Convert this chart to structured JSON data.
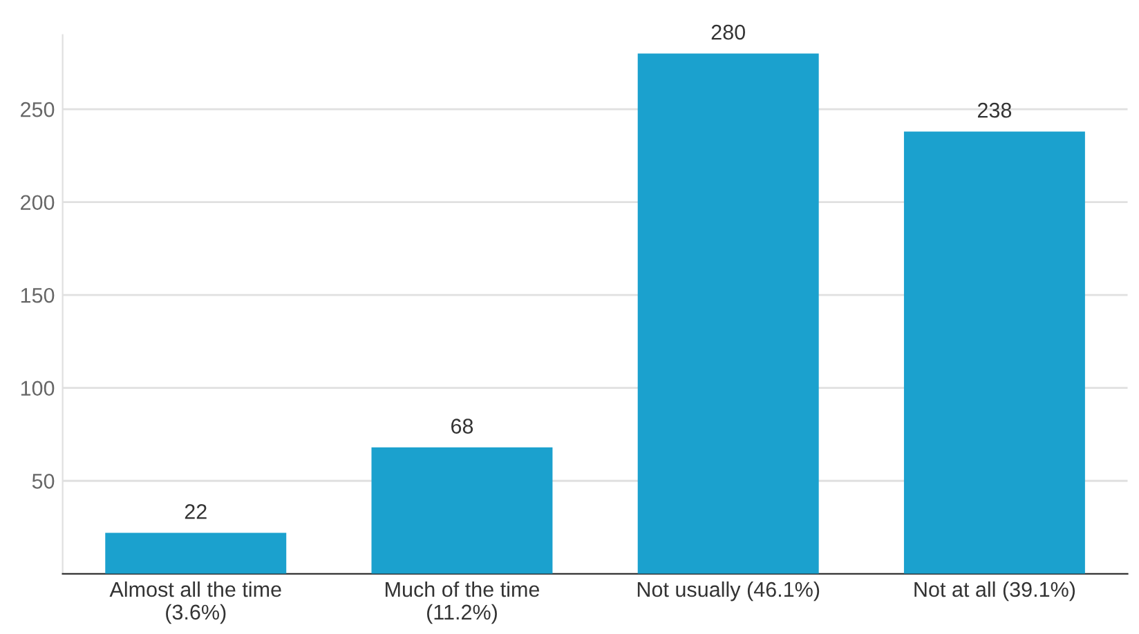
{
  "chart_data": {
    "type": "bar",
    "categories": [
      "Almost all the time\n(3.6%)",
      "Much of the time\n(11.2%)",
      "Not usually (46.1%)",
      "Not at all (39.1%)"
    ],
    "values": [
      22,
      68,
      280,
      238
    ],
    "color": "#1ba1ce",
    "ylim": [
      0,
      290
    ],
    "yticks": [
      50,
      100,
      150,
      200,
      250
    ],
    "grid": "y",
    "data_labels": true
  }
}
